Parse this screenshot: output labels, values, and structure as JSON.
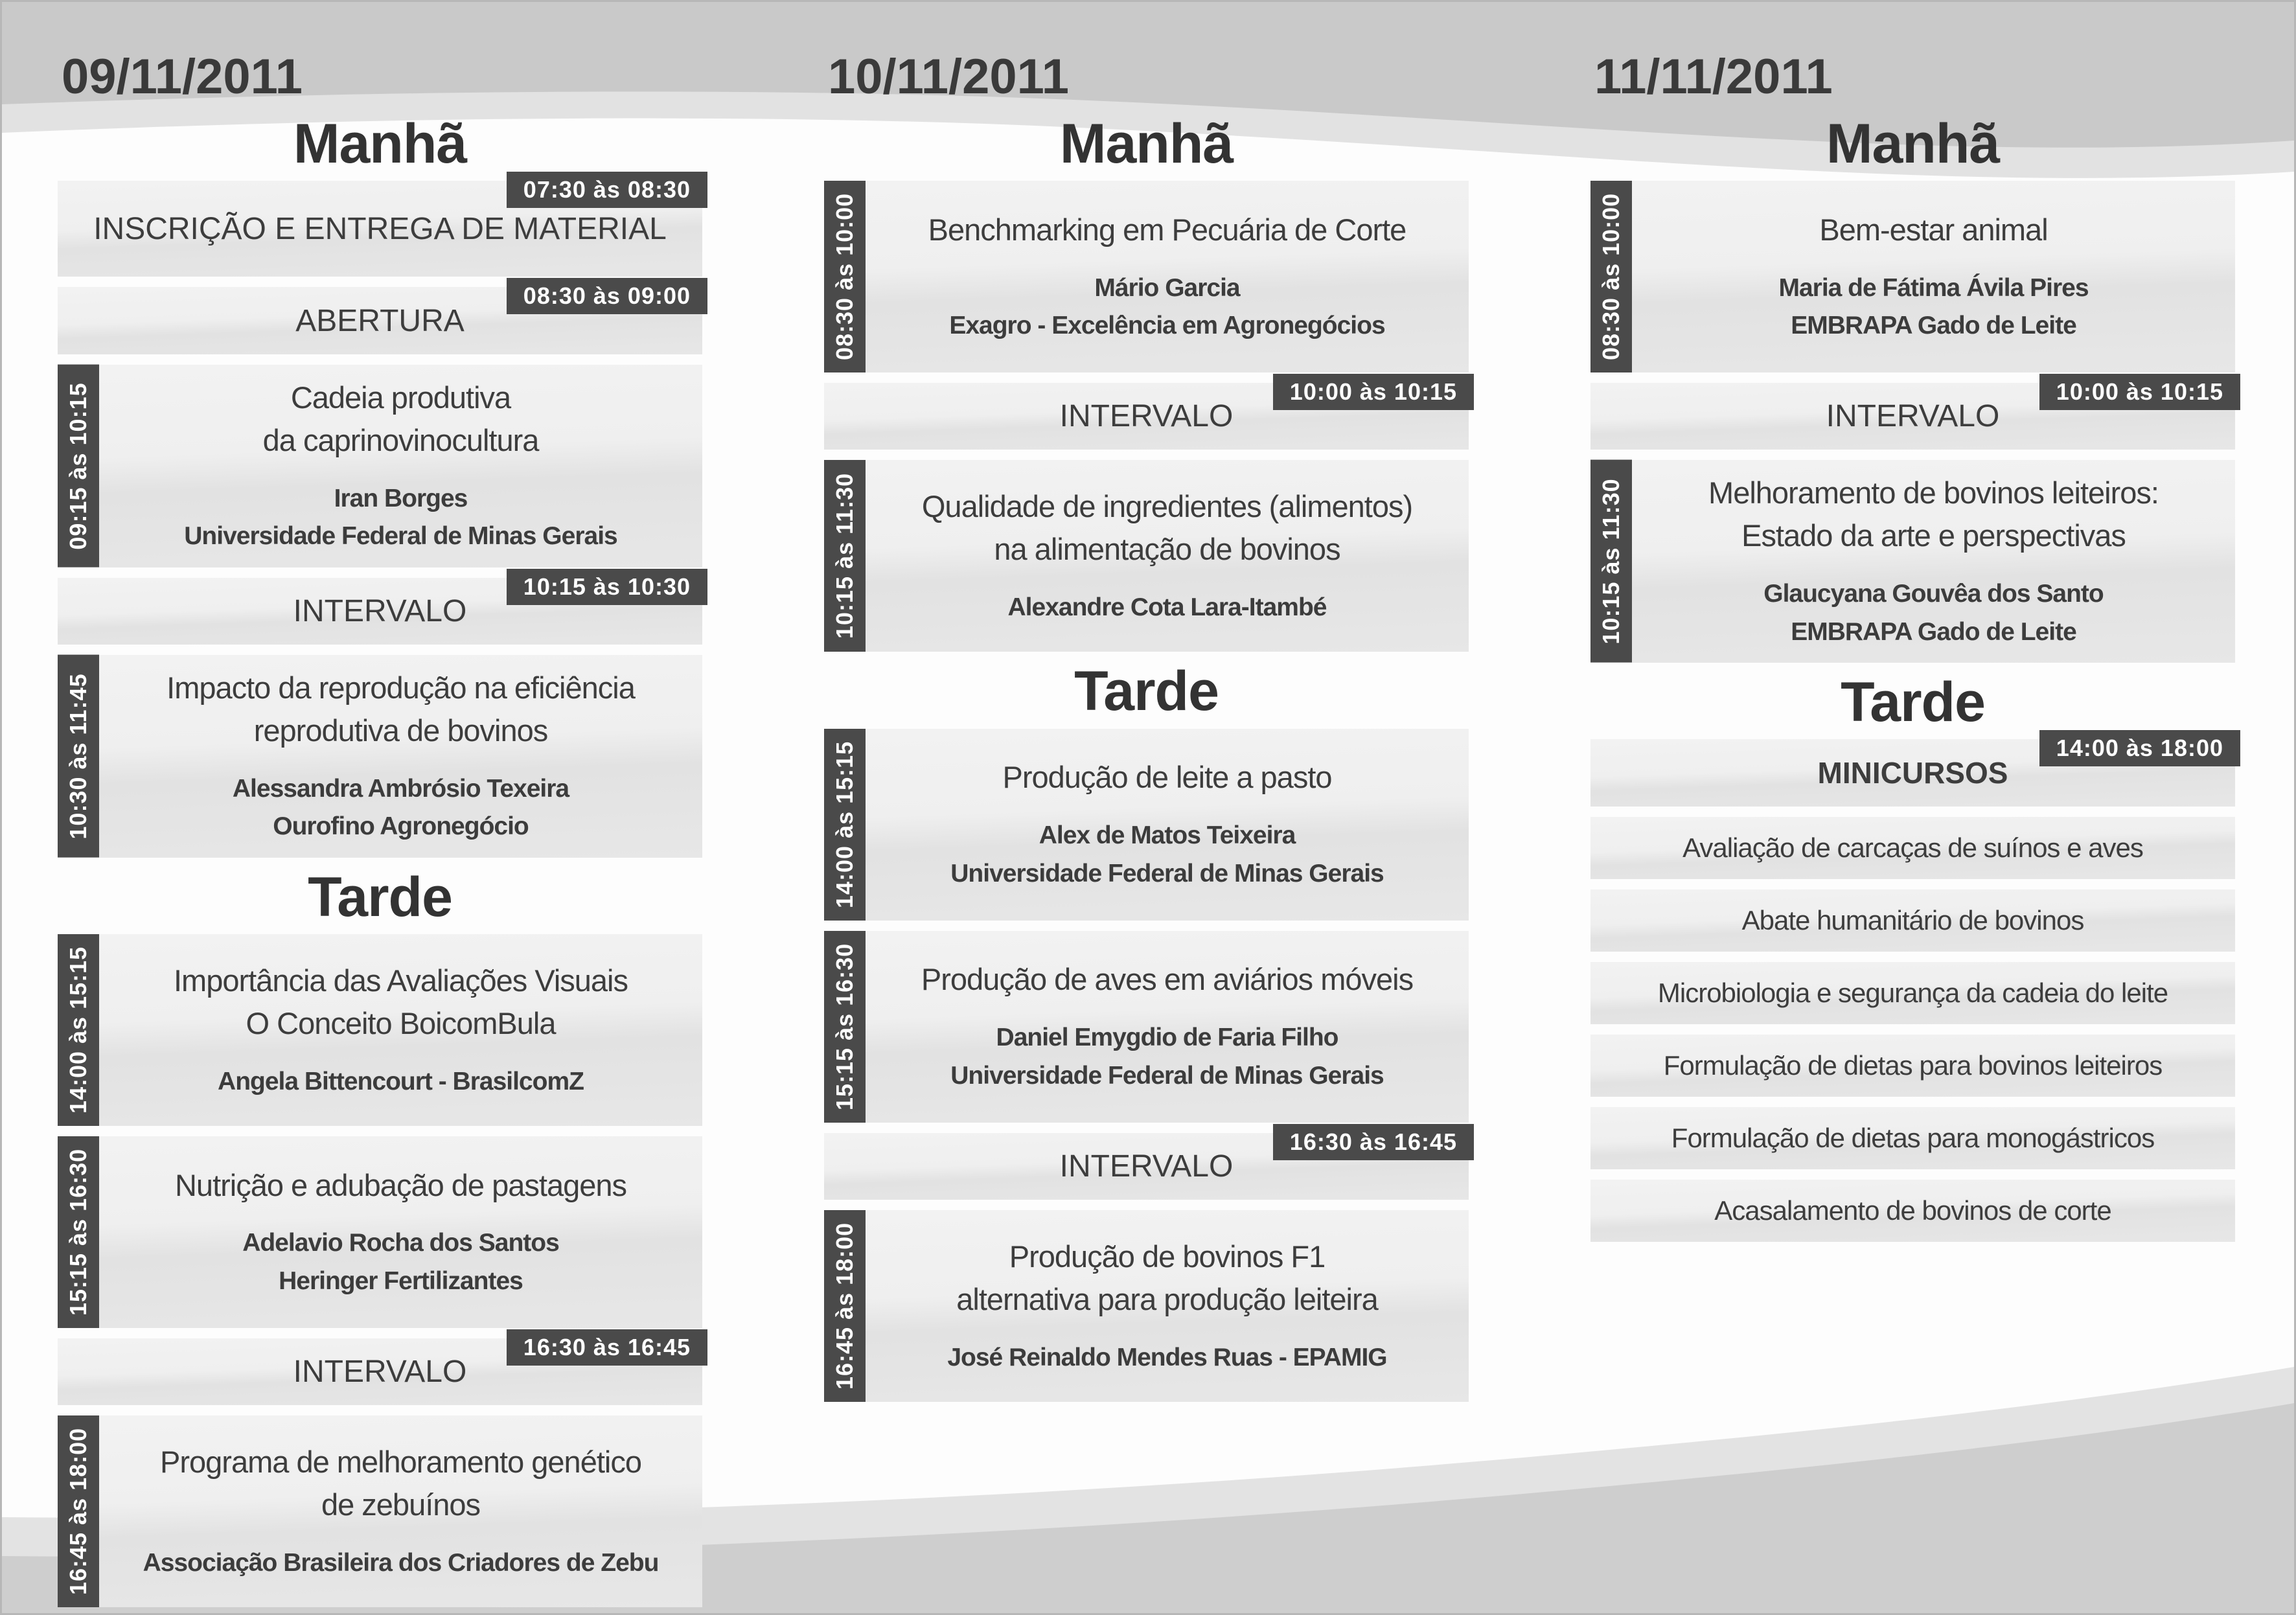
{
  "theme": {
    "badge_bg": "#4a4a4a",
    "block_bg_light": "#efefef",
    "block_bg_dark": "#e3e3e3",
    "text_color": "#3d3d3d",
    "wave_dark": "#c9c9c9",
    "wave_light": "#e2e2e2"
  },
  "days": [
    {
      "date": "09/11/2011",
      "sections": [
        {
          "heading": "Manhã",
          "blocks": [
            {
              "type": "plain",
              "size": "md",
              "badge": "07:30 às 08:30",
              "title": [
                "INSCRIÇÃO  E ENTREGA DE MATERIAL"
              ]
            },
            {
              "type": "plain",
              "size": "sm",
              "badge": "08:30 às 09:00",
              "title": [
                "ABERTURA"
              ]
            },
            {
              "type": "session",
              "time": "09:15 às 10:15",
              "title": [
                "Cadeia produtiva",
                "da caprinovinocultura"
              ],
              "speakers": [
                "Iran Borges",
                "Universidade Federal de Minas Gerais"
              ]
            },
            {
              "type": "break",
              "badge": "10:15 às 10:30",
              "title": [
                "INTERVALO"
              ]
            },
            {
              "type": "session",
              "time": "10:30 às 11:45",
              "title": [
                "Impacto da reprodução na eficiência",
                "reprodutiva de bovinos"
              ],
              "speakers": [
                "Alessandra Ambrósio Texeira",
                "Ourofino Agronegócio"
              ]
            }
          ]
        },
        {
          "heading": "Tarde",
          "blocks": [
            {
              "type": "session",
              "time": "14:00 às 15:15",
              "title": [
                "Importância das Avaliações Visuais",
                "O Conceito BoicomBula"
              ],
              "speakers": [
                "Angela Bittencourt - BrasilcomZ"
              ]
            },
            {
              "type": "session",
              "time": "15:15 às 16:30",
              "title": [
                "Nutrição e adubação de pastagens"
              ],
              "speakers": [
                "Adelavio Rocha dos Santos",
                "Heringer Fertilizantes"
              ]
            },
            {
              "type": "break",
              "badge": "16:30 às 16:45",
              "title": [
                "INTERVALO"
              ]
            },
            {
              "type": "session",
              "time": "16:45 às 18:00",
              "title": [
                "Programa de melhoramento genético",
                "de zebuínos"
              ],
              "speakers": [
                "Associação Brasileira dos Criadores de Zebu"
              ]
            }
          ]
        }
      ]
    },
    {
      "date": "10/11/2011",
      "sections": [
        {
          "heading": "Manhã",
          "blocks": [
            {
              "type": "session",
              "time": "08:30 às 10:00",
              "title": [
                "Benchmarking em Pecuária de Corte"
              ],
              "speakers": [
                "Mário Garcia",
                "Exagro - Excelência em Agronegócios"
              ]
            },
            {
              "type": "break",
              "badge": "10:00 às 10:15",
              "title": [
                "INTERVALO"
              ]
            },
            {
              "type": "session",
              "time": "10:15 às 11:30",
              "title": [
                "Qualidade de ingredientes (alimentos)",
                "na alimentação de bovinos"
              ],
              "speakers": [
                "Alexandre Cota Lara-Itambé"
              ]
            }
          ]
        },
        {
          "heading": "Tarde",
          "blocks": [
            {
              "type": "session",
              "time": "14:00 às 15:15",
              "title": [
                "Produção de leite a pasto"
              ],
              "speakers": [
                "Alex de Matos Teixeira",
                "Universidade Federal de Minas Gerais"
              ]
            },
            {
              "type": "session",
              "time": "15:15 às 16:30",
              "title": [
                "Produção de aves em aviários móveis"
              ],
              "speakers": [
                "Daniel Emygdio de Faria Filho",
                "Universidade Federal de Minas Gerais"
              ]
            },
            {
              "type": "break",
              "badge": "16:30 às 16:45",
              "title": [
                "INTERVALO"
              ]
            },
            {
              "type": "session",
              "time": "16:45 às 18:00",
              "title": [
                "Produção de bovinos F1",
                "alternativa para produção leiteira"
              ],
              "speakers": [
                "José Reinaldo Mendes Ruas - EPAMIG"
              ]
            }
          ]
        }
      ]
    },
    {
      "date": "11/11/2011",
      "sections": [
        {
          "heading": "Manhã",
          "blocks": [
            {
              "type": "session",
              "time": "08:30 às 10:00",
              "title": [
                "Bem-estar animal"
              ],
              "speakers": [
                "Maria de Fátima Ávila Pires",
                "EMBRAPA Gado de Leite"
              ]
            },
            {
              "type": "break",
              "badge": "10:00 às 10:15",
              "title": [
                "INTERVALO"
              ]
            },
            {
              "type": "session",
              "time": "10:15 às 11:30",
              "title": [
                "Melhoramento de bovinos leiteiros:",
                "Estado da arte e perspectivas"
              ],
              "speakers": [
                "Glaucyana Gouvêa dos Santo",
                "EMBRAPA Gado de Leite"
              ]
            }
          ]
        },
        {
          "heading": "Tarde",
          "blocks": [
            {
              "type": "minicursos",
              "badge": "14:00 às 18:00",
              "title": [
                "MINICURSOS"
              ]
            },
            {
              "type": "item",
              "title": [
                "Avaliação de carcaças de suínos e aves"
              ]
            },
            {
              "type": "item",
              "title": [
                "Abate humanitário de bovinos"
              ]
            },
            {
              "type": "item",
              "title": [
                "Microbiologia e segurança da cadeia do leite"
              ]
            },
            {
              "type": "item",
              "title": [
                "Formulação de dietas para bovinos leiteiros"
              ]
            },
            {
              "type": "item",
              "title": [
                "Formulação de dietas para monogástricos"
              ]
            },
            {
              "type": "item",
              "title": [
                "Acasalamento de bovinos de corte"
              ]
            }
          ]
        }
      ]
    }
  ]
}
